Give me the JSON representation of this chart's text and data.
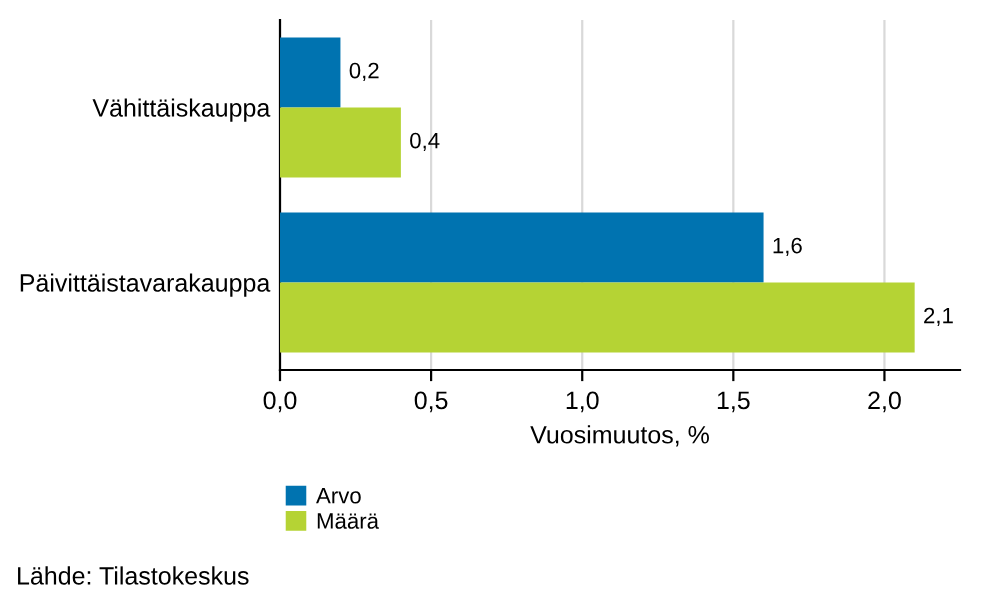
{
  "chart_data": {
    "type": "bar",
    "orientation": "horizontal",
    "categories": [
      "Vähittäiskauppa",
      "Päivittäistavarakauppa"
    ],
    "series": [
      {
        "name": "Arvo",
        "color": "#0073b0",
        "values": [
          0.2,
          1.6
        ],
        "value_labels": [
          "0,2",
          "1,6"
        ]
      },
      {
        "name": "Määrä",
        "color": "#b5d334",
        "values": [
          0.4,
          2.1
        ],
        "value_labels": [
          "0,4",
          "2,1"
        ]
      }
    ],
    "xlim": [
      0,
      2.25
    ],
    "xticks": [
      {
        "value": 0,
        "label": "0,0"
      },
      {
        "value": 0.5,
        "label": "0,5"
      },
      {
        "value": 1,
        "label": "1,0"
      },
      {
        "value": 1.5,
        "label": "1,5"
      },
      {
        "value": 2,
        "label": "2,0"
      }
    ],
    "xlabel": "Vuosimuutos, %",
    "grid": "x",
    "legend": "bottom left",
    "annotations": [
      "Lähde: Tilastokeskus"
    ]
  }
}
